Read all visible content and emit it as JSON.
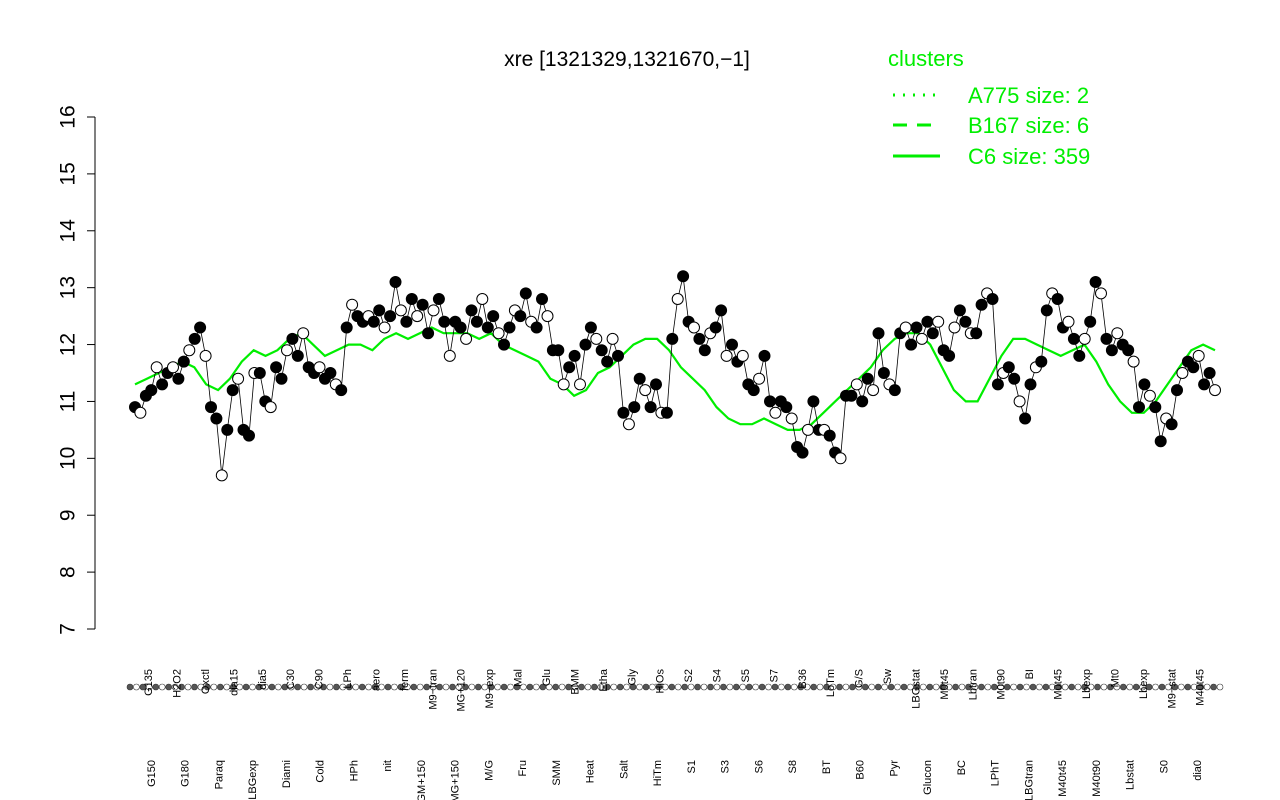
{
  "chart_data": {
    "type": "line",
    "title": "xre [1321329,1321670,−1]",
    "xlabel": "",
    "ylabel": "",
    "ylim": [
      7,
      16
    ],
    "yticks": [
      7,
      8,
      9,
      10,
      11,
      12,
      13,
      14,
      15,
      16
    ],
    "categories_top": [
      "G150",
      "G180",
      "Paraq",
      "LBGexp",
      "Diami",
      "Cold",
      "HPh",
      "nit",
      "GM+150",
      "MG+150",
      "M/G",
      "Fru",
      "SMM",
      "Heat",
      "Salt",
      "HiTm",
      "S1",
      "S3",
      "S6",
      "S8",
      "BT",
      "B60",
      "Pyr",
      "Glucon",
      "BC",
      "LPhT",
      "LBGtran",
      "M40t45",
      "M40t90",
      "Lbstat",
      "S0",
      "dia0",
      "Mt0"
    ],
    "categories_bottom": [
      "G135",
      "H2O2",
      "Oxctl",
      "dia15",
      "dia5",
      "C30",
      "C90",
      "LPh",
      "aero",
      "ferm",
      "M9−tran",
      "MG+120",
      "M9−exp",
      "Mal",
      "Glu",
      "BMM",
      "Etha",
      "Gly",
      "HiOs",
      "S2",
      "S4",
      "S5",
      "S7",
      "B36",
      "LoTm",
      "G/S",
      "Sw",
      "LBGstat",
      "M0t45",
      "Lbtran",
      "M0t90",
      "BI",
      "M0t45",
      "Lbexp",
      "Mt0",
      "Lbexp",
      "M9−stat",
      "M40t45",
      "T1.0H"
    ],
    "series": [
      {
        "name": "A775 size: 2",
        "style": "dotted"
      },
      {
        "name": "B167 size: 6",
        "style": "dashed"
      },
      {
        "name": "C6 size: 359",
        "style": "solid"
      }
    ],
    "mean_line": [
      11.3,
      11.4,
      11.5,
      11.6,
      11.7,
      11.6,
      11.3,
      11.2,
      11.4,
      11.7,
      11.9,
      11.8,
      11.9,
      12.1,
      12.2,
      12.0,
      11.8,
      11.9,
      12.0,
      12.0,
      11.9,
      12.1,
      12.2,
      12.1,
      12.2,
      12.3,
      12.2,
      12.2,
      12.2,
      12.1,
      12.2,
      12.0,
      11.9,
      11.8,
      11.7,
      11.4,
      11.3,
      11.1,
      11.2,
      11.5,
      11.6,
      11.8,
      12.0,
      12.1,
      12.1,
      11.9,
      11.6,
      11.4,
      11.2,
      10.9,
      10.7,
      10.6,
      10.6,
      10.7,
      10.6,
      10.5,
      10.5,
      10.6,
      10.8,
      11.0,
      11.2,
      11.4,
      11.6,
      11.9,
      12.1,
      12.2,
      12.2,
      12.0,
      11.6,
      11.2,
      11.0,
      11.0,
      11.4,
      11.8,
      12.1,
      12.1,
      12.0,
      11.9,
      11.8,
      11.9,
      12.0,
      11.7,
      11.3,
      11.0,
      10.8,
      10.8,
      11.0,
      11.3,
      11.6,
      11.9,
      12.0,
      11.9
    ],
    "points": [
      10.9,
      10.8,
      11.1,
      11.2,
      11.6,
      11.3,
      11.5,
      11.6,
      11.4,
      11.7,
      11.9,
      12.1,
      12.3,
      11.8,
      10.9,
      10.7,
      9.7,
      10.5,
      11.2,
      11.4,
      10.5,
      10.4,
      11.5,
      11.5,
      11.0,
      10.9,
      11.6,
      11.4,
      11.9,
      12.1,
      11.8,
      12.2,
      11.6,
      11.5,
      11.6,
      11.4,
      11.5,
      11.3,
      11.2,
      12.3,
      12.7,
      12.5,
      12.4,
      12.5,
      12.4,
      12.6,
      12.3,
      12.5,
      13.1,
      12.6,
      12.4,
      12.8,
      12.5,
      12.7,
      12.2,
      12.6,
      12.8,
      12.4,
      11.8,
      12.4,
      12.3,
      12.1,
      12.6,
      12.4,
      12.8,
      12.3,
      12.5,
      12.2,
      12.0,
      12.3,
      12.6,
      12.5,
      12.9,
      12.4,
      12.3,
      12.8,
      12.5,
      11.9,
      11.9,
      11.3,
      11.6,
      11.8,
      11.3,
      12.0,
      12.3,
      12.1,
      11.9,
      11.7,
      12.1,
      11.8,
      10.8,
      10.6,
      10.9,
      11.4,
      11.2,
      10.9,
      11.3,
      10.8,
      10.8,
      12.1,
      12.8,
      13.2,
      12.4,
      12.3,
      12.1,
      11.9,
      12.2,
      12.3,
      12.6,
      11.8,
      12.0,
      11.7,
      11.8,
      11.3,
      11.2,
      11.4,
      11.8,
      11.0,
      10.8,
      11.0,
      10.9,
      10.7,
      10.2,
      10.1,
      10.5,
      11.0,
      10.5,
      10.5,
      10.4,
      10.1,
      10.0,
      11.1,
      11.1,
      11.3,
      11.0,
      11.4,
      11.2,
      12.2,
      11.5,
      11.3,
      11.2,
      12.2,
      12.3,
      12.0,
      12.3,
      12.1,
      12.4,
      12.2,
      12.4,
      11.9,
      11.8,
      12.3,
      12.6,
      12.4,
      12.2,
      12.2,
      12.7,
      12.9,
      12.8,
      11.3,
      11.5,
      11.6,
      11.4,
      11.0,
      10.7,
      11.3,
      11.6,
      11.7,
      12.6,
      12.9,
      12.8,
      12.3,
      12.4,
      12.1,
      11.8,
      12.1,
      12.4,
      13.1,
      12.9,
      12.1,
      11.9,
      12.2,
      12.0,
      11.9,
      11.7,
      10.9,
      11.3,
      11.1,
      10.9,
      10.3,
      10.7,
      10.6,
      11.2,
      11.5,
      11.7,
      11.6,
      11.8,
      11.3,
      11.5,
      11.2
    ],
    "grid": false,
    "legend_position": "top-right"
  },
  "legend": {
    "title": "clusters",
    "items": [
      {
        "label": "A775 size: 2",
        "style": "dotted"
      },
      {
        "label": "B167 size: 6",
        "style": "dashed"
      },
      {
        "label": "C6 size: 359",
        "style": "solid"
      }
    ]
  },
  "colors": {
    "cluster_line": "#00ee00",
    "points": "#000000",
    "axis": "#000000"
  }
}
